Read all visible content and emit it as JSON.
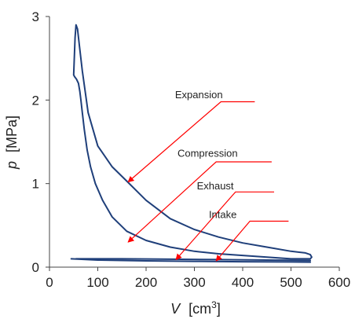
{
  "chart_data": {
    "type": "line",
    "title": "",
    "xlabel": {
      "symbol": "V",
      "unit_base": "[cm",
      "unit_exp": "3",
      "unit_close": "]"
    },
    "ylabel": {
      "symbol": "p",
      "unit": "[MPa]"
    },
    "xlim": [
      0,
      600
    ],
    "ylim": [
      0,
      3
    ],
    "x_ticks": [
      0,
      100,
      200,
      300,
      400,
      500,
      600
    ],
    "y_ticks": [
      0,
      1,
      2,
      3
    ],
    "grid": false,
    "legend": "none",
    "series": [
      {
        "color": "#1f3f7a",
        "x": [
          50,
          53,
          55,
          58,
          62,
          68,
          80,
          100,
          130,
          160,
          200,
          250,
          300,
          350,
          400,
          450,
          500,
          530,
          540,
          543,
          540,
          520,
          500,
          450,
          400,
          350,
          300,
          250,
          200,
          160,
          130,
          110,
          95,
          85,
          78,
          72,
          68,
          65,
          63,
          60,
          56,
          52,
          50
        ],
        "y": [
          2.3,
          2.75,
          2.9,
          2.85,
          2.65,
          2.35,
          1.85,
          1.45,
          1.2,
          1.03,
          0.8,
          0.58,
          0.45,
          0.36,
          0.29,
          0.24,
          0.19,
          0.17,
          0.15,
          0.12,
          0.1,
          0.1,
          0.1,
          0.12,
          0.14,
          0.16,
          0.19,
          0.24,
          0.32,
          0.43,
          0.6,
          0.8,
          1.0,
          1.2,
          1.4,
          1.65,
          1.85,
          2.0,
          2.1,
          2.2,
          2.25,
          2.28,
          2.3
        ]
      },
      {
        "color": "#1f3f7a",
        "x": [
          540,
          450,
          350,
          250,
          150,
          80,
          55
        ],
        "y": [
          0.08,
          0.085,
          0.09,
          0.095,
          0.1,
          0.1,
          0.1
        ]
      },
      {
        "color": "#1f3f7a",
        "x": [
          45,
          100,
          200,
          300,
          400,
          500,
          540
        ],
        "y": [
          0.1,
          0.085,
          0.075,
          0.07,
          0.065,
          0.062,
          0.06
        ]
      }
    ],
    "annotations": [
      {
        "text": "Expansion",
        "label_x": 260,
        "label_y": 2.02,
        "line_from": [
          425,
          1.98
        ],
        "line_elbow": [
          355,
          1.98
        ],
        "arrow_to": [
          163,
          1.02
        ]
      },
      {
        "text": "Compression",
        "label_x": 265,
        "label_y": 1.32,
        "line_from": [
          460,
          1.26
        ],
        "line_elbow": [
          345,
          1.26
        ],
        "arrow_to": [
          163,
          0.3
        ]
      },
      {
        "text": "Exhaust",
        "label_x": 305,
        "label_y": 0.93,
        "line_from": [
          465,
          0.9
        ],
        "line_elbow": [
          385,
          0.9
        ],
        "arrow_to": [
          262,
          0.09
        ]
      },
      {
        "text": "Intake",
        "label_x": 330,
        "label_y": 0.59,
        "line_from": [
          495,
          0.55
        ],
        "line_elbow": [
          415,
          0.55
        ],
        "arrow_to": [
          345,
          0.075
        ]
      }
    ],
    "colors": {
      "curve": "#1f3f7a",
      "arrow": "#ff0000",
      "axis": "#444444"
    }
  }
}
